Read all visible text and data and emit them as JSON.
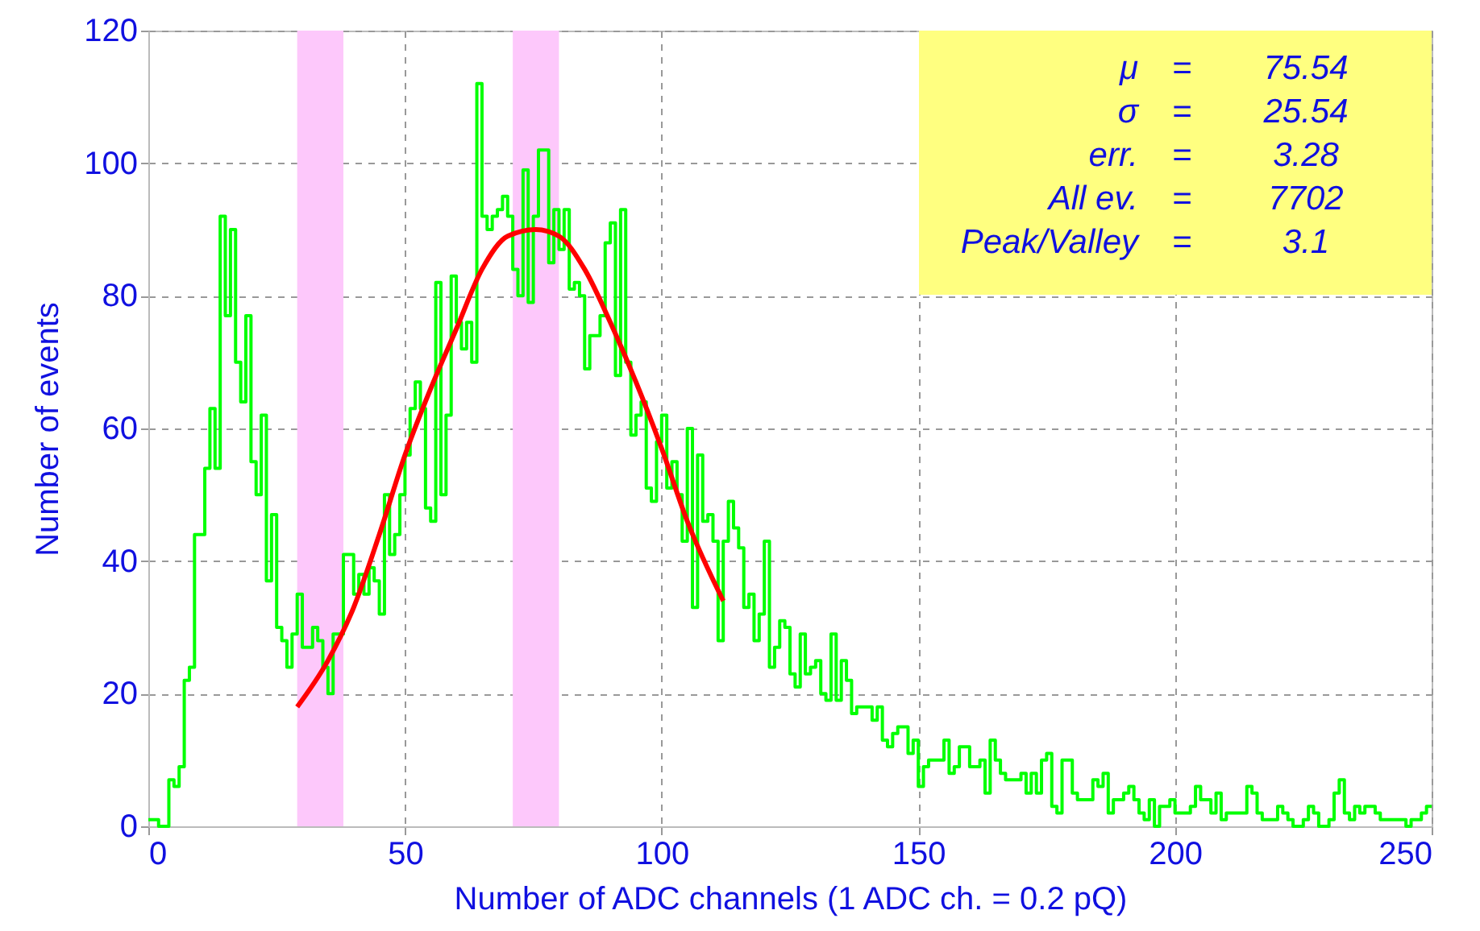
{
  "chart_data": {
    "type": "histogram",
    "xlabel": "Number of ADC channels (1 ADC ch. = 0.2 pQ)",
    "ylabel": "Number of events",
    "series": [
      {
        "color": "#00ff00",
        "bins": [
          0,
          1,
          2,
          3,
          4,
          5,
          6,
          7,
          8,
          9,
          10,
          11,
          12,
          13,
          14,
          15,
          16,
          17,
          18,
          19,
          20,
          21,
          22,
          23,
          24,
          25,
          26,
          27,
          28,
          29,
          30,
          31,
          32,
          33,
          34,
          35,
          36,
          37,
          38,
          39,
          40,
          41,
          42,
          43,
          44,
          45,
          46,
          47,
          48,
          49,
          50,
          51,
          52,
          53,
          54,
          55,
          56,
          57,
          58,
          59,
          60,
          61,
          62,
          63,
          64,
          65,
          66,
          67,
          68,
          69,
          70,
          71,
          72,
          73,
          74,
          75,
          76,
          77,
          78,
          79,
          80,
          81,
          82,
          83,
          84,
          85,
          86,
          87,
          88,
          89,
          90,
          91,
          92,
          93,
          94,
          95,
          96,
          97,
          98,
          99,
          100,
          101,
          102,
          103,
          104,
          105,
          106,
          107,
          108,
          109,
          110,
          111,
          112,
          113,
          114,
          115,
          116,
          117,
          118,
          119,
          120,
          121,
          122,
          123,
          124,
          125,
          126,
          127,
          128,
          129,
          130,
          131,
          132,
          133,
          134,
          135,
          136,
          137,
          138,
          139,
          140,
          141,
          142,
          143,
          144,
          145,
          146,
          147,
          148,
          149,
          150,
          151,
          152,
          153,
          154,
          155,
          156,
          157,
          158,
          159,
          160,
          161,
          162,
          163,
          164,
          165,
          166,
          167,
          168,
          169,
          170,
          171,
          172,
          173,
          174,
          175,
          176,
          177,
          178,
          179,
          180,
          181,
          182,
          183,
          184,
          185,
          186,
          187,
          188,
          189,
          190,
          191,
          192,
          193,
          194,
          195,
          196,
          197,
          198,
          199,
          200,
          201,
          202,
          203,
          204,
          205,
          206,
          207,
          208,
          209,
          210,
          211,
          212,
          213,
          214,
          215,
          216,
          217,
          218,
          219,
          220,
          221,
          222,
          223,
          224,
          225,
          226,
          227,
          228,
          229,
          230,
          231,
          232,
          233,
          234,
          235,
          236,
          237,
          238,
          239,
          240,
          241,
          242,
          243,
          244,
          245,
          246,
          247,
          248,
          249,
          250
        ],
        "values": [
          1,
          1,
          0,
          0,
          7,
          6,
          9,
          22,
          24,
          44,
          44,
          54,
          63,
          54,
          92,
          77,
          90,
          70,
          64,
          77,
          55,
          50,
          62,
          37,
          47,
          30,
          28,
          24,
          29,
          35,
          27,
          27,
          30,
          28,
          24,
          20,
          29,
          29,
          41,
          41,
          35,
          38,
          35,
          39,
          37,
          32,
          50,
          41,
          44,
          50,
          56,
          63,
          67,
          63,
          48,
          46,
          82,
          50,
          62,
          83,
          76,
          72,
          76,
          70,
          112,
          92,
          90,
          92,
          93,
          95,
          92,
          84,
          80,
          99,
          79,
          92,
          102,
          102,
          85,
          93,
          87,
          93,
          81,
          82,
          80,
          69,
          74,
          74,
          77,
          88,
          91,
          68,
          93,
          70,
          59,
          62,
          64,
          51,
          49,
          58,
          62,
          51,
          55,
          50,
          43,
          60,
          33,
          56,
          46,
          47,
          43,
          28,
          43,
          49,
          45,
          42,
          33,
          35,
          28,
          32,
          43,
          24,
          27,
          31,
          30,
          23,
          21,
          29,
          23,
          24,
          25,
          20,
          19,
          29,
          19,
          25,
          22,
          17,
          18,
          18,
          18,
          16,
          18,
          13,
          12,
          14,
          15,
          15,
          11,
          13,
          6,
          9,
          10,
          10,
          10,
          13,
          8,
          9,
          12,
          12,
          9,
          9,
          10,
          5,
          13,
          10,
          8,
          7,
          7,
          7,
          8,
          5,
          8,
          5,
          10,
          11,
          3,
          2,
          10,
          10,
          5,
          4,
          4,
          4,
          7,
          6,
          8,
          2,
          4,
          4,
          5,
          6,
          4,
          2,
          1,
          4,
          0,
          3,
          3,
          4,
          2,
          2,
          2,
          3,
          6,
          4,
          4,
          2,
          5,
          1,
          2,
          2,
          2,
          2,
          6,
          5,
          2,
          1,
          1,
          1,
          3,
          2,
          1,
          0,
          0,
          1,
          3,
          2,
          0,
          0,
          1,
          5,
          7,
          2,
          1,
          3,
          2,
          3,
          3,
          2,
          1,
          1,
          1,
          1,
          1,
          0,
          1,
          1,
          2,
          3
        ]
      },
      {
        "type": "line",
        "color": "#ff0000",
        "x": [
          29,
          35,
          40,
          45,
          50,
          55,
          60,
          65,
          70,
          75.5,
          80,
          85,
          90,
          95,
          100,
          105,
          112
        ],
        "values": [
          18,
          25,
          33,
          44,
          56,
          66,
          75,
          84,
          89,
          90,
          89,
          84,
          76,
          67,
          57,
          46,
          34
        ]
      }
    ],
    "bands": [
      {
        "axis": "x",
        "from": 29,
        "to": 38,
        "color": "#fdc8fb"
      },
      {
        "axis": "x",
        "from": 71,
        "to": 80,
        "color": "#fdc8fb"
      }
    ],
    "xlim": [
      0,
      250
    ],
    "xticks": [
      0,
      50,
      100,
      150,
      200,
      250
    ],
    "ylim": [
      0,
      120
    ],
    "yticks": [
      0,
      20,
      40,
      60,
      80,
      100,
      120
    ],
    "grid": true,
    "annotations": [
      "μ = 75.54",
      "σ = 25.54",
      "err. = 3.28",
      "All ev. = 7702",
      "Peak/Valley = 3.1"
    ]
  }
}
